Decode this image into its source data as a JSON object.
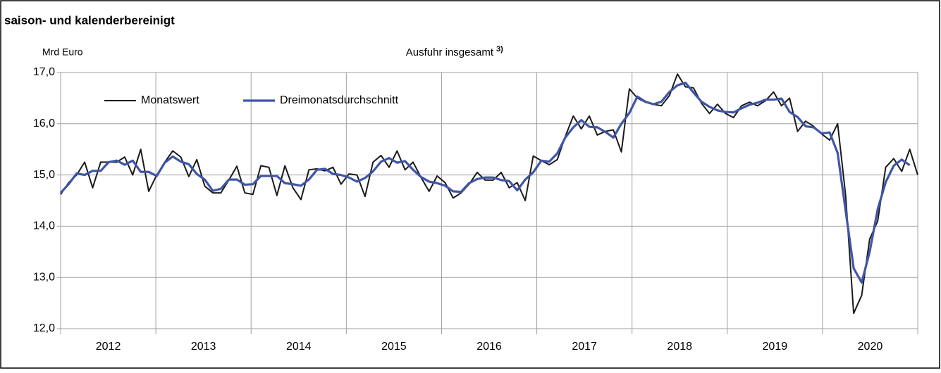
{
  "chart_data": {
    "type": "line",
    "subtitle": "saison- und kalenderbereinigt",
    "y_label": "Mrd Euro",
    "title": "Ausfuhr insgesamt",
    "title_footnote": "3)",
    "xlabels": [
      "2012",
      "2013",
      "2014",
      "2015",
      "2016",
      "2017",
      "2018",
      "2019",
      "2020"
    ],
    "ylim": [
      12,
      17
    ],
    "yticks": [
      {
        "value": 12,
        "label": "12,0"
      },
      {
        "value": 13,
        "label": "13,0"
      },
      {
        "value": 14,
        "label": "14,0"
      },
      {
        "value": 15,
        "label": "15,0"
      },
      {
        "value": 16,
        "label": "16,0"
      },
      {
        "value": 17,
        "label": "17,0"
      }
    ],
    "grid": true,
    "series": [
      {
        "name": "Monatswert",
        "color": "#1a1a1a",
        "values": [
          14.62,
          14.85,
          15.0,
          15.25,
          14.75,
          15.25,
          15.25,
          15.25,
          15.35,
          15.0,
          15.5,
          14.68,
          15.0,
          15.25,
          15.47,
          15.35,
          14.97,
          15.3,
          14.78,
          14.65,
          14.65,
          14.9,
          15.17,
          14.65,
          14.62,
          15.18,
          15.15,
          14.6,
          15.18,
          14.75,
          14.52,
          15.1,
          15.12,
          15.08,
          15.15,
          14.82,
          15.02,
          15.0,
          14.58,
          15.25,
          15.38,
          15.15,
          15.47,
          15.1,
          15.25,
          14.95,
          14.68,
          14.98,
          14.85,
          14.55,
          14.65,
          14.82,
          15.05,
          14.9,
          14.9,
          15.05,
          14.75,
          14.85,
          14.5,
          15.37,
          15.28,
          15.2,
          15.3,
          15.75,
          16.15,
          15.9,
          16.15,
          15.78,
          15.85,
          15.88,
          15.45,
          16.68,
          16.5,
          16.42,
          16.38,
          16.35,
          16.55,
          16.97,
          16.72,
          16.7,
          16.4,
          16.2,
          16.38,
          16.2,
          16.12,
          16.35,
          16.42,
          16.35,
          16.45,
          16.62,
          16.35,
          16.5,
          15.85,
          16.05,
          15.95,
          15.8,
          15.68,
          16.0,
          14.6,
          12.3,
          12.65,
          13.75,
          14.1,
          15.15,
          15.32,
          15.07,
          15.5,
          15.0
        ]
      },
      {
        "name": "Dreimonatsdurchschnitt",
        "color": "#3f56a6",
        "values": [
          14.65,
          14.82,
          15.03,
          15.0,
          15.08,
          15.08,
          15.25,
          15.28,
          15.2,
          15.28,
          15.06,
          15.06,
          14.98,
          15.24,
          15.36,
          15.26,
          15.21,
          15.02,
          14.91,
          14.69,
          14.73,
          14.91,
          14.91,
          14.81,
          14.82,
          14.98,
          14.98,
          14.98,
          14.84,
          14.82,
          14.79,
          14.91,
          15.1,
          15.12,
          15.02,
          15.0,
          14.95,
          14.87,
          14.94,
          15.07,
          15.26,
          15.33,
          15.24,
          15.27,
          15.1,
          14.96,
          14.87,
          14.84,
          14.79,
          14.68,
          14.67,
          14.84,
          14.92,
          14.95,
          14.95,
          14.9,
          14.88,
          14.7,
          14.91,
          15.05,
          15.28,
          15.26,
          15.42,
          15.73,
          15.93,
          16.07,
          15.94,
          15.93,
          15.84,
          15.73,
          16.0,
          16.21,
          16.53,
          16.43,
          16.38,
          16.43,
          16.62,
          16.75,
          16.8,
          16.61,
          16.43,
          16.33,
          16.26,
          16.23,
          16.22,
          16.3,
          16.37,
          16.41,
          16.47,
          16.47,
          16.49,
          16.23,
          16.13,
          15.95,
          15.93,
          15.81,
          15.83,
          15.43,
          14.3,
          13.18,
          12.9,
          13.5,
          14.33,
          14.86,
          15.18,
          15.3,
          15.19,
          null
        ]
      }
    ]
  }
}
